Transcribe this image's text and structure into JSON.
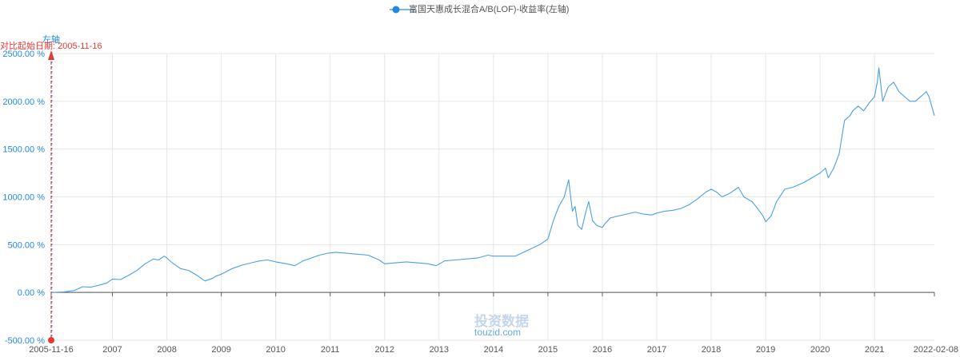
{
  "colors": {
    "series": "#4a9fe6",
    "axis_text": "#1e88e5",
    "start_marker": "#e53935",
    "grid": "#e6e6e6",
    "watermark": "#6aa8e4"
  },
  "watermark": {
    "cn": "投资数据",
    "en": "touzid.com"
  },
  "chart_data": {
    "type": "line",
    "legend": {
      "entries": [
        "富国天惠成长混合A/B(LOF)-收益率(左轴)"
      ],
      "placement": "top-center"
    },
    "y_axis_name": "左轴",
    "start_label": "对比起始日期: 2005-11-16",
    "ylim": [
      -500,
      2500
    ],
    "yticks": [
      -500,
      0,
      500,
      1000,
      1500,
      2000,
      2500
    ],
    "ytick_labels": [
      "-500.00 %",
      "0.00 %",
      "500.00 %",
      "1000.00 %",
      "1500.00 %",
      "2000.00 %",
      "2500.00 %"
    ],
    "xlim": [
      2005.875,
      2022.1
    ],
    "xticks": [
      2005.875,
      2007,
      2008,
      2009,
      2010,
      2011,
      2012,
      2013,
      2014,
      2015,
      2016,
      2017,
      2018,
      2019,
      2020,
      2021,
      2022.1
    ],
    "xtick_labels": [
      "2005-11-16",
      "2007",
      "2008",
      "2009",
      "2010",
      "2011",
      "2012",
      "2013",
      "2014",
      "2015",
      "2016",
      "2017",
      "2018",
      "2019",
      "2020",
      "2021",
      "2022-02-08"
    ],
    "grid": true,
    "series": [
      {
        "name": "富国天惠成长混合A/B(LOF)-收益率(左轴)",
        "x": [
          2005.875,
          2006.1,
          2006.3,
          2006.45,
          2006.6,
          2006.75,
          2006.9,
          2007.0,
          2007.15,
          2007.3,
          2007.45,
          2007.6,
          2007.75,
          2007.85,
          2007.95,
          2008.0,
          2008.1,
          2008.25,
          2008.4,
          2008.55,
          2008.7,
          2008.85,
          2008.9,
          2009.0,
          2009.2,
          2009.4,
          2009.55,
          2009.7,
          2009.85,
          2010.0,
          2010.2,
          2010.35,
          2010.5,
          2010.65,
          2010.8,
          2010.95,
          2011.1,
          2011.3,
          2011.5,
          2011.7,
          2011.9,
          2012.0,
          2012.2,
          2012.4,
          2012.6,
          2012.8,
          2012.95,
          2013.1,
          2013.3,
          2013.5,
          2013.7,
          2013.9,
          2014.0,
          2014.2,
          2014.4,
          2014.55,
          2014.7,
          2014.85,
          2015.0,
          2015.1,
          2015.2,
          2015.3,
          2015.38,
          2015.45,
          2015.5,
          2015.55,
          2015.62,
          2015.7,
          2015.75,
          2015.82,
          2015.9,
          2016.0,
          2016.05,
          2016.15,
          2016.3,
          2016.45,
          2016.6,
          2016.75,
          2016.9,
          2017.0,
          2017.15,
          2017.3,
          2017.45,
          2017.6,
          2017.75,
          2017.9,
          2018.0,
          2018.1,
          2018.2,
          2018.35,
          2018.5,
          2018.6,
          2018.75,
          2018.85,
          2018.95,
          2019.0,
          2019.1,
          2019.2,
          2019.35,
          2019.5,
          2019.7,
          2019.85,
          2020.0,
          2020.1,
          2020.15,
          2020.25,
          2020.35,
          2020.45,
          2020.55,
          2020.6,
          2020.7,
          2020.8,
          2020.9,
          2021.0,
          2021.05,
          2021.08,
          2021.15,
          2021.25,
          2021.35,
          2021.45,
          2021.55,
          2021.65,
          2021.75,
          2021.85,
          2021.95,
          2022.0,
          2022.05,
          2022.1
        ],
        "values": [
          0,
          5,
          20,
          60,
          55,
          75,
          100,
          140,
          135,
          180,
          230,
          300,
          350,
          340,
          380,
          360,
          310,
          250,
          230,
          180,
          120,
          150,
          170,
          190,
          250,
          290,
          310,
          330,
          340,
          320,
          300,
          280,
          330,
          360,
          390,
          410,
          420,
          410,
          400,
          390,
          340,
          300,
          310,
          320,
          310,
          300,
          280,
          330,
          340,
          350,
          360,
          390,
          380,
          380,
          380,
          420,
          460,
          500,
          560,
          750,
          900,
          1000,
          1180,
          850,
          900,
          700,
          660,
          850,
          950,
          750,
          700,
          680,
          720,
          780,
          800,
          820,
          840,
          820,
          810,
          830,
          850,
          860,
          880,
          920,
          980,
          1050,
          1080,
          1050,
          1000,
          1040,
          1100,
          1000,
          950,
          880,
          800,
          740,
          800,
          950,
          1080,
          1100,
          1150,
          1200,
          1250,
          1300,
          1200,
          1300,
          1450,
          1800,
          1850,
          1900,
          1950,
          1900,
          1980,
          2050,
          2200,
          2350,
          2000,
          2150,
          2200,
          2100,
          2050,
          2000,
          2000,
          2050,
          2100,
          2050,
          1950,
          1850
        ]
      }
    ]
  }
}
